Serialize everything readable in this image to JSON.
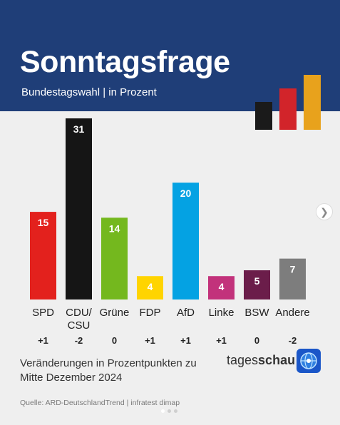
{
  "header": {
    "title": "Sonntagsfrage",
    "subtitle": "Bundestagswahl | in Prozent",
    "background": "#1f3e78"
  },
  "chart_data": {
    "type": "bar",
    "title": "Sonntagsfrage",
    "subtitle": "Bundestagswahl | in Prozent",
    "categories": [
      "SPD",
      "CDU/CSU",
      "Grüne",
      "FDP",
      "AfD",
      "Linke",
      "BSW",
      "Andere"
    ],
    "values": [
      15,
      31,
      14,
      4,
      20,
      4,
      5,
      7
    ],
    "changes": [
      "+1",
      "-2",
      "0",
      "+1",
      "+1",
      "+1",
      "0",
      "-2"
    ],
    "colors": [
      "#e3211d",
      "#151515",
      "#74b81e",
      "#ffd400",
      "#04a2e3",
      "#c2327b",
      "#6b1d4a",
      "#7d7d7d"
    ],
    "ylim": [
      0,
      31
    ],
    "grid": false,
    "legend": "none"
  },
  "footer": {
    "note": "Veränderungen in Prozentpunkten zu Mitte Dezember 2024",
    "source": "Quelle: ARD-DeutschlandTrend | infratest dimap",
    "brand_part1": "tages",
    "brand_part2": "schau"
  },
  "icons": {
    "next": "chevron-right-icon",
    "logo": "tagesschau-globe-icon"
  },
  "deco_colors": [
    "#1a1a1a",
    "#d2242a",
    "#e8a21c"
  ]
}
